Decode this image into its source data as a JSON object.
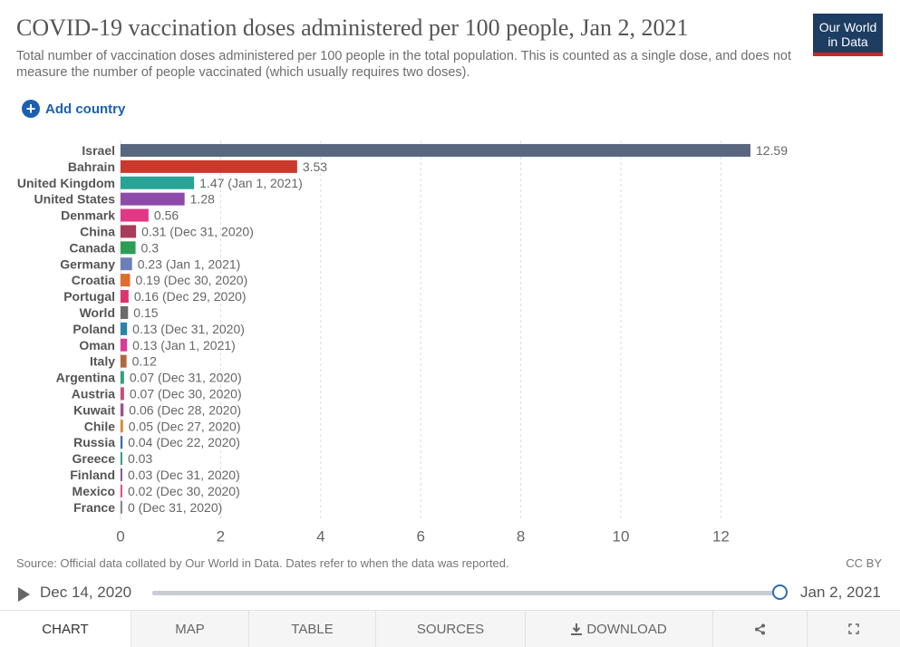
{
  "header": {
    "title": "COVID-19 vaccination doses administered per 100 people, Jan 2, 2021",
    "subtitle": "Total number of vaccination doses administered per 100 people in the total population. This is counted as a single dose, and does not measure the number of people vaccinated (which usually requires two doses).",
    "logo_line1": "Our World",
    "logo_line2": "in Data",
    "add_country": "Add country"
  },
  "chart_data": {
    "type": "bar",
    "orientation": "horizontal",
    "title": "COVID-19 vaccination doses administered per 100 people, Jan 2, 2021",
    "xlim": [
      0,
      13
    ],
    "xticks": [
      0,
      2,
      4,
      6,
      8,
      10,
      12
    ],
    "grid": true,
    "bars": [
      {
        "country": "Israel",
        "value": 12.59,
        "label": "12.59",
        "color": "#58677e"
      },
      {
        "country": "Bahrain",
        "value": 3.53,
        "label": "3.53",
        "color": "#c9392c"
      },
      {
        "country": "United Kingdom",
        "value": 1.47,
        "label": "1.47 (Jan 1, 2021)",
        "color": "#27a496"
      },
      {
        "country": "United States",
        "value": 1.28,
        "label": "1.28",
        "color": "#8e4aaa"
      },
      {
        "country": "Denmark",
        "value": 0.56,
        "label": "0.56",
        "color": "#e33685"
      },
      {
        "country": "China",
        "value": 0.31,
        "label": "0.31 (Dec 31, 2020)",
        "color": "#a83b5b"
      },
      {
        "country": "Canada",
        "value": 0.3,
        "label": "0.3",
        "color": "#2b9d55"
      },
      {
        "country": "Germany",
        "value": 0.23,
        "label": "0.23 (Jan 1, 2021)",
        "color": "#6d7fb8"
      },
      {
        "country": "Croatia",
        "value": 0.19,
        "label": "0.19 (Dec 30, 2020)",
        "color": "#e06c2d"
      },
      {
        "country": "Portugal",
        "value": 0.16,
        "label": "0.16 (Dec 29, 2020)",
        "color": "#e0336b"
      },
      {
        "country": "World",
        "value": 0.15,
        "label": "0.15",
        "color": "#6b6b6b"
      },
      {
        "country": "Poland",
        "value": 0.13,
        "label": "0.13 (Dec 31, 2020)",
        "color": "#2a83a8"
      },
      {
        "country": "Oman",
        "value": 0.13,
        "label": "0.13 (Jan 1, 2021)",
        "color": "#d93a9a"
      },
      {
        "country": "Italy",
        "value": 0.12,
        "label": "0.12",
        "color": "#b0663b"
      },
      {
        "country": "Argentina",
        "value": 0.07,
        "label": "0.07 (Dec 31, 2020)",
        "color": "#2fa07d"
      },
      {
        "country": "Austria",
        "value": 0.07,
        "label": "0.07 (Dec 30, 2020)",
        "color": "#c44f7a"
      },
      {
        "country": "Kuwait",
        "value": 0.06,
        "label": "0.06 (Dec 28, 2020)",
        "color": "#a0508a"
      },
      {
        "country": "Chile",
        "value": 0.05,
        "label": "0.05 (Dec 27, 2020)",
        "color": "#d98a2b"
      },
      {
        "country": "Russia",
        "value": 0.04,
        "label": "0.04 (Dec 22, 2020)",
        "color": "#3a6fa8"
      },
      {
        "country": "Greece",
        "value": 0.03,
        "label": "0.03",
        "color": "#3aa08a"
      },
      {
        "country": "Finland",
        "value": 0.03,
        "label": "0.03 (Dec 31, 2020)",
        "color": "#8a5aa8"
      },
      {
        "country": "Mexico",
        "value": 0.02,
        "label": "0.02 (Dec 30, 2020)",
        "color": "#e0508a"
      },
      {
        "country": "France",
        "value": 0,
        "label": "0 (Dec 31, 2020)",
        "color": "#888888"
      }
    ]
  },
  "footer": {
    "source": "Source: Official data collated by Our World in Data. Dates refer to when the data was reported.",
    "license": "CC BY"
  },
  "timeline": {
    "start_date": "Dec 14, 2020",
    "end_date": "Jan 2, 2021",
    "position": 1.0
  },
  "tabs": [
    {
      "label": "CHART",
      "active": true
    },
    {
      "label": "MAP",
      "active": false
    },
    {
      "label": "TABLE",
      "active": false
    },
    {
      "label": "SOURCES",
      "active": false
    },
    {
      "label": "DOWNLOAD",
      "active": false
    }
  ]
}
